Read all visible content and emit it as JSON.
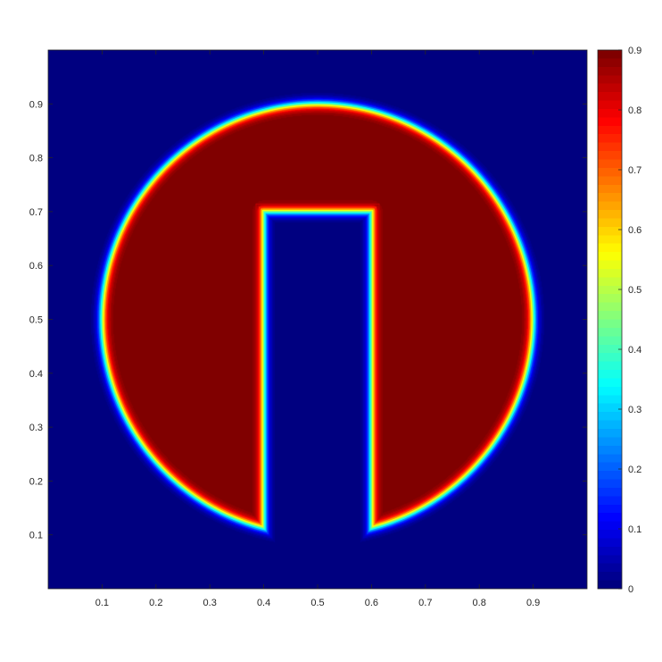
{
  "chart_data": {
    "type": "heatmap",
    "title": "",
    "xlabel": "",
    "ylabel": "",
    "xlim": [
      0,
      1
    ],
    "ylim": [
      0,
      1
    ],
    "x_ticks": [
      0.1,
      0.2,
      0.3,
      0.4,
      0.5,
      0.6,
      0.7,
      0.8,
      0.9
    ],
    "x_tick_labels": [
      "0.1",
      "0.2",
      "0.3",
      "0.4",
      "0.5",
      "0.6",
      "0.7",
      "0.8",
      "0.9"
    ],
    "y_ticks": [
      0.1,
      0.2,
      0.3,
      0.4,
      0.5,
      0.6,
      0.7,
      0.8,
      0.9
    ],
    "y_tick_labels": [
      "0.1",
      "0.2",
      "0.3",
      "0.4",
      "0.5",
      "0.6",
      "0.7",
      "0.8",
      "0.9"
    ],
    "colormap": "jet",
    "colorbar": {
      "range": [
        0,
        0.9
      ],
      "ticks": [
        0,
        0.1,
        0.2,
        0.3,
        0.4,
        0.5,
        0.6,
        0.7,
        0.8,
        0.9
      ],
      "tick_labels": [
        "0",
        "0.1",
        "0.2",
        "0.3",
        "0.4",
        "0.5",
        "0.6",
        "0.7",
        "0.8",
        "0.9"
      ]
    },
    "field": {
      "shape": "slotted-disk",
      "background_value": 0,
      "inside_value": 0.9,
      "disk_center": [
        0.5,
        0.5
      ],
      "disk_radius": 0.4,
      "slot_x_range": [
        0.4,
        0.6
      ],
      "slot_y_top": 0.7,
      "interface_width": 0.02
    },
    "contours": {
      "levels": [
        0.05,
        0.15,
        0.25,
        0.35,
        0.45,
        0.55,
        0.65,
        0.75,
        0.85
      ]
    }
  }
}
